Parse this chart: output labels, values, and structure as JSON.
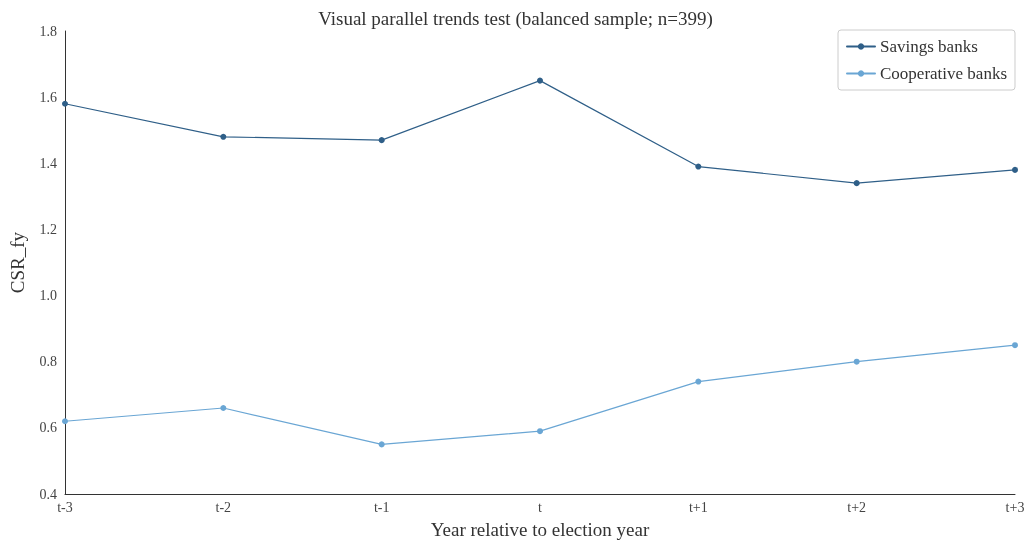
{
  "chart_data": {
    "type": "line",
    "title": "Visual parallel trends test (balanced sample; n=399)",
    "xlabel": "Year relative to election year",
    "ylabel": "CSR_fy",
    "categories": [
      "t-3",
      "t-2",
      "t-1",
      "t",
      "t+1",
      "t+2",
      "t+3"
    ],
    "series": [
      {
        "name": "Savings banks",
        "color": "#2f5f88",
        "values": [
          1.58,
          1.48,
          1.47,
          1.65,
          1.39,
          1.34,
          1.38
        ]
      },
      {
        "name": "Cooperative banks",
        "color": "#6aa6d4",
        "values": [
          0.62,
          0.66,
          0.55,
          0.59,
          0.74,
          0.8,
          0.85
        ]
      }
    ],
    "ylim": [
      0.4,
      1.8
    ],
    "yticks": [
      0.4,
      0.6,
      0.8,
      {
        "value": 1,
        "label": "1.0"
      },
      1.2,
      1.4,
      1.6,
      1.8
    ],
    "grid": false,
    "legend": "top right",
    "marker": "circle",
    "line_style": "solid"
  }
}
